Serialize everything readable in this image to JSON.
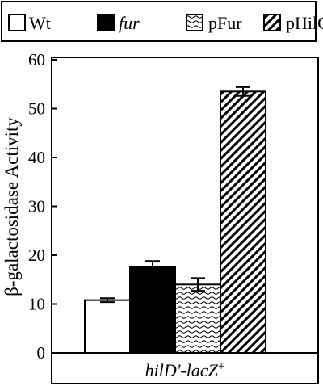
{
  "chart_data": {
    "type": "bar",
    "title": "",
    "ylabel": "β-galactosidase Activity",
    "xlabel": "",
    "categories": [
      "hilD'-lacZ+"
    ],
    "category_label": {
      "main": "hilD'-lacZ",
      "sup": "+"
    },
    "ylim": [
      0,
      60
    ],
    "yticks": [
      0,
      10,
      20,
      30,
      40,
      50,
      60
    ],
    "grid": false,
    "legend": "top",
    "series": [
      {
        "name": "Wt",
        "values": [
          10.8
        ],
        "error": [
          0.4
        ],
        "fill": "white",
        "italic": false
      },
      {
        "name": "fur",
        "values": [
          17.6
        ],
        "error": [
          1.2
        ],
        "fill": "black",
        "italic": true
      },
      {
        "name": "pFur",
        "values": [
          14.0
        ],
        "error": [
          1.3
        ],
        "fill": "wave",
        "italic": false
      },
      {
        "name": "pHilC",
        "values": [
          53.5
        ],
        "error": [
          0.9
        ],
        "fill": "diagonal",
        "italic": false
      }
    ]
  }
}
